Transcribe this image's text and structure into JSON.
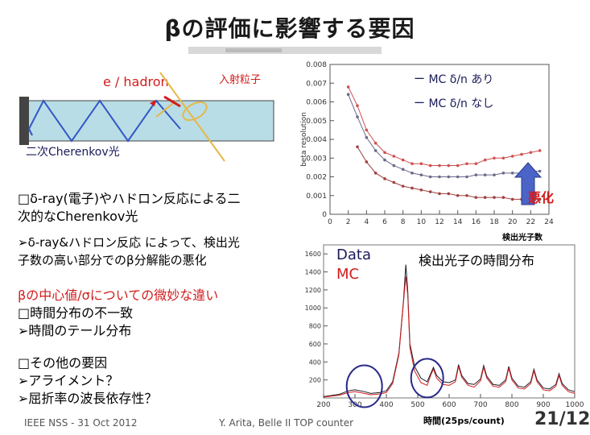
{
  "slide": {
    "title": "βの評価に影響する要因",
    "page": "21/12",
    "footer_left": "IEEE NSS - 31 Oct 2012",
    "footer_center": "Y. Arita, Belle II TOP counter"
  },
  "diagram": {
    "e_hadron": "e / hadron",
    "incident": "入射粒子",
    "secondary": "二次Cherenkov光"
  },
  "text": {
    "b1_l1": "□δ-ray(電子)やハドロン反応による二",
    "b1_l2": "次的なCherenkov光",
    "b1_s1": "➢δ-ray&ハドロン反応 によって、検出光",
    "b1_s2": "子数の高い部分でのβ分解能の悪化",
    "b2_head": "βの中心値/σについての微妙な違い",
    "b2_l1": "□時間分布の不一致",
    "b2_l2": "➢時間のテール分布",
    "b3_head": "□その他の要因",
    "b3_l1": "➢アライメント？",
    "b3_l2": "➢屈折率の波長依存性？"
  },
  "plot1": {
    "ylabel": "beta resolution",
    "xlabel": "検出光子数",
    "legend_ari": "ー MC δ/n あり",
    "legend_nashi": "ー MC δ/n なし",
    "worse": "悪化",
    "yticks": [
      "0.008",
      "0.007",
      "0.006",
      "0.005",
      "0.004",
      "0.003",
      "0.002",
      "0.001",
      "0"
    ],
    "xticks": [
      "0",
      "2",
      "4",
      "6",
      "8",
      "10",
      "12",
      "14",
      "16",
      "18",
      "20",
      "22",
      "24"
    ]
  },
  "plot2": {
    "title": "検出光子の時間分布",
    "data_label": "Data",
    "mc_label": "MC",
    "xlabel": "時間(25ps/count)",
    "yticks": [
      "1600",
      "1400",
      "1200",
      "1000",
      "800",
      "600",
      "400",
      "200"
    ],
    "xticks": [
      "200",
      "300",
      "400",
      "500",
      "600",
      "700",
      "800",
      "900",
      "1000"
    ]
  },
  "colors": {
    "red": "#d21c1c",
    "navy": "#1a1a5a",
    "arrow_blue": "#4a64c8"
  },
  "chart_data": [
    {
      "type": "line",
      "title": "",
      "xlabel": "検出光子数",
      "ylabel": "beta resolution",
      "xlim": [
        0,
        24
      ],
      "ylim": [
        0,
        0.008
      ],
      "series": [
        {
          "name": "MC δ/n あり",
          "x": [
            2,
            3,
            4,
            5,
            6,
            7,
            8,
            9,
            10,
            11,
            12,
            13,
            14,
            15,
            16,
            17,
            18,
            19,
            20,
            21,
            22,
            23
          ],
          "values": [
            0.0068,
            0.0058,
            0.0045,
            0.0038,
            0.0033,
            0.0031,
            0.0029,
            0.0027,
            0.0027,
            0.0026,
            0.0026,
            0.0026,
            0.0026,
            0.0027,
            0.0027,
            0.0029,
            0.003,
            0.003,
            0.0031,
            0.0032,
            0.0033,
            0.0034
          ]
        },
        {
          "name": "MC δ/n なし",
          "x": [
            2,
            3,
            4,
            5,
            6,
            7,
            8,
            9,
            10,
            11,
            12,
            13,
            14,
            15,
            16,
            17,
            18,
            19,
            20,
            21,
            22,
            23
          ],
          "values": [
            0.0064,
            0.0052,
            0.0041,
            0.0034,
            0.0029,
            0.0026,
            0.0024,
            0.0022,
            0.0021,
            0.002,
            0.002,
            0.002,
            0.002,
            0.002,
            0.0021,
            0.0021,
            0.0021,
            0.0022,
            0.0022,
            0.0022,
            0.0023,
            0.0023
          ]
        },
        {
          "name": "",
          "x": [
            3,
            4,
            5,
            6,
            7,
            8,
            9,
            10,
            11,
            12,
            13,
            14,
            15,
            16,
            17,
            18,
            19,
            20,
            21,
            22,
            23
          ],
          "values": [
            0.0036,
            0.0028,
            0.0022,
            0.0019,
            0.0017,
            0.0015,
            0.0014,
            0.0013,
            0.0012,
            0.0011,
            0.0011,
            0.001,
            0.001,
            0.0009,
            0.0009,
            0.0009,
            0.0009,
            0.0008,
            0.0008,
            0.0008,
            0.0008
          ]
        }
      ]
    },
    {
      "type": "line",
      "title": "検出光子の時間分布",
      "xlabel": "時間(25ps/count)",
      "ylabel": "",
      "xlim": [
        200,
        1000
      ],
      "ylim": [
        0,
        1700
      ],
      "series": [
        {
          "name": "Data",
          "x": [
            200,
            250,
            280,
            300,
            330,
            350,
            380,
            400,
            420,
            440,
            455,
            462,
            468,
            475,
            490,
            510,
            530,
            540,
            550,
            560,
            580,
            600,
            620,
            630,
            640,
            660,
            680,
            700,
            710,
            720,
            740,
            760,
            780,
            790,
            800,
            820,
            840,
            860,
            870,
            880,
            900,
            920,
            940,
            950,
            960,
            980,
            1000
          ],
          "values": [
            15,
            40,
            80,
            90,
            70,
            50,
            60,
            80,
            180,
            500,
            1100,
            1480,
            1200,
            600,
            350,
            220,
            180,
            260,
            340,
            250,
            180,
            170,
            200,
            370,
            250,
            160,
            150,
            210,
            360,
            240,
            150,
            140,
            200,
            350,
            220,
            130,
            120,
            180,
            320,
            200,
            110,
            100,
            150,
            270,
            160,
            90,
            70
          ]
        },
        {
          "name": "MC",
          "x": [
            200,
            250,
            280,
            300,
            330,
            350,
            380,
            400,
            420,
            440,
            455,
            462,
            468,
            475,
            490,
            510,
            530,
            540,
            550,
            560,
            580,
            600,
            620,
            630,
            640,
            660,
            680,
            700,
            710,
            720,
            740,
            760,
            780,
            790,
            800,
            820,
            840,
            860,
            870,
            880,
            900,
            920,
            940,
            950,
            960,
            980,
            1000
          ],
          "values": [
            10,
            30,
            60,
            70,
            50,
            35,
            45,
            60,
            160,
            480,
            1080,
            1350,
            1150,
            560,
            300,
            170,
            140,
            240,
            320,
            220,
            150,
            140,
            180,
            350,
            230,
            140,
            120,
            190,
            340,
            220,
            130,
            120,
            180,
            330,
            200,
            110,
            100,
            160,
            300,
            180,
            90,
            80,
            130,
            250,
            140,
            70,
            50
          ]
        }
      ]
    }
  ]
}
